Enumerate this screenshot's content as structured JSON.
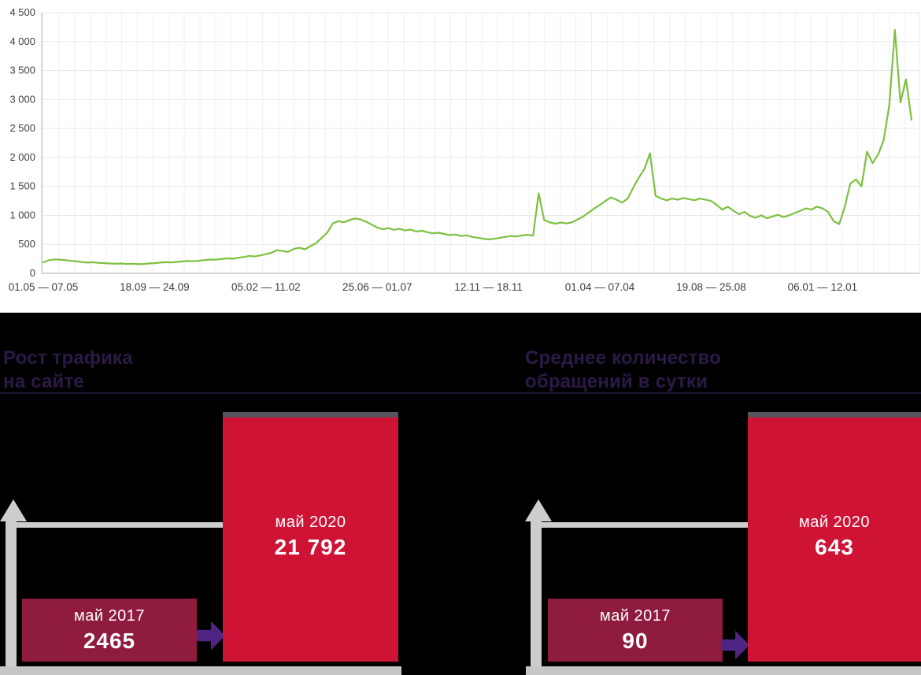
{
  "colors": {
    "page_background": "#000000",
    "chart_background": "#ffffff",
    "line_green": "#7cc140",
    "grid": "#e9e9e9",
    "axis_border": "#c9c9c9",
    "tick_text": "#414141",
    "small_bar": "#8f1b3e",
    "big_bar": "#ce1335",
    "big_bar_top_edge": "#56555c",
    "arrow": "#4f2483",
    "axis_gray": "#cdcdcd",
    "baseline_gray": "#c6c6c6",
    "heading_text": "#2b1a47",
    "divider": "#211538"
  },
  "chart_data": [
    {
      "type": "line",
      "x_tick_labels": [
        "01.05 — 07.05",
        "18.09 — 24.09",
        "05.02 — 11.02",
        "25.06 — 01.07",
        "12.11 — 18.11",
        "01.04 — 07.04",
        "19.08 — 25.08",
        "06.01 — 12.01"
      ],
      "x_tick_weeks": [
        0,
        20,
        40,
        60,
        80,
        100,
        120,
        140
      ],
      "y_ticks": [
        0,
        500,
        1000,
        1500,
        2000,
        2500,
        3000,
        3500,
        4000,
        4500
      ],
      "y_tick_labels": [
        "0",
        "500",
        "1 000",
        "1 500",
        "2 000",
        "2 500",
        "3 000",
        "3 500",
        "4 000",
        "4 500"
      ],
      "ylim": [
        0,
        4500
      ],
      "grid": true,
      "legend": "none",
      "values": [
        190,
        225,
        240,
        235,
        225,
        215,
        205,
        195,
        185,
        190,
        180,
        175,
        170,
        165,
        170,
        160,
        165,
        158,
        162,
        170,
        175,
        185,
        192,
        188,
        196,
        205,
        212,
        208,
        218,
        228,
        238,
        235,
        248,
        258,
        252,
        268,
        280,
        300,
        290,
        310,
        330,
        355,
        400,
        385,
        370,
        420,
        440,
        415,
        470,
        520,
        610,
        700,
        860,
        900,
        880,
        920,
        945,
        930,
        890,
        840,
        790,
        760,
        780,
        750,
        770,
        740,
        755,
        720,
        735,
        710,
        690,
        700,
        680,
        660,
        670,
        645,
        655,
        630,
        615,
        600,
        585,
        595,
        610,
        630,
        645,
        635,
        655,
        665,
        650,
        1380,
        920,
        880,
        855,
        875,
        860,
        880,
        930,
        980,
        1050,
        1120,
        1180,
        1250,
        1310,
        1270,
        1220,
        1290,
        1480,
        1650,
        1800,
        2070,
        1340,
        1290,
        1260,
        1290,
        1270,
        1300,
        1280,
        1260,
        1290,
        1270,
        1250,
        1180,
        1100,
        1150,
        1080,
        1020,
        1060,
        990,
        960,
        1000,
        950,
        980,
        1010,
        970,
        1000,
        1040,
        1080,
        1120,
        1100,
        1150,
        1120,
        1060,
        900,
        850,
        1150,
        1550,
        1620,
        1500,
        2100,
        1900,
        2050,
        2300,
        2900,
        4200,
        2950,
        3350,
        2650
      ]
    },
    {
      "type": "bar",
      "title": "Рост трафика на сайте",
      "categories": [
        "май 2017",
        "май 2020"
      ],
      "values": [
        2465,
        21792
      ],
      "bar_colors": [
        "#8f1b3e",
        "#ce1335"
      ]
    },
    {
      "type": "bar",
      "title": "Среднее количество обращений в сутки",
      "categories": [
        "май 2017",
        "май 2020"
      ],
      "values": [
        90,
        643
      ],
      "bar_colors": [
        "#8f1b3e",
        "#ce1335"
      ]
    }
  ],
  "panels": {
    "left": {
      "heading_line1": "Рост трафика",
      "heading_line2": "на сайте",
      "small_bar": {
        "label": "май 2017",
        "value": "2465"
      },
      "big_bar": {
        "label": "май 2020",
        "value": "21 792"
      }
    },
    "right": {
      "heading_line1": "Среднее количество",
      "heading_line2": "обращений в сутки",
      "small_bar": {
        "label": "май 2017",
        "value": "90"
      },
      "big_bar": {
        "label": "май 2020",
        "value": "643"
      }
    }
  }
}
